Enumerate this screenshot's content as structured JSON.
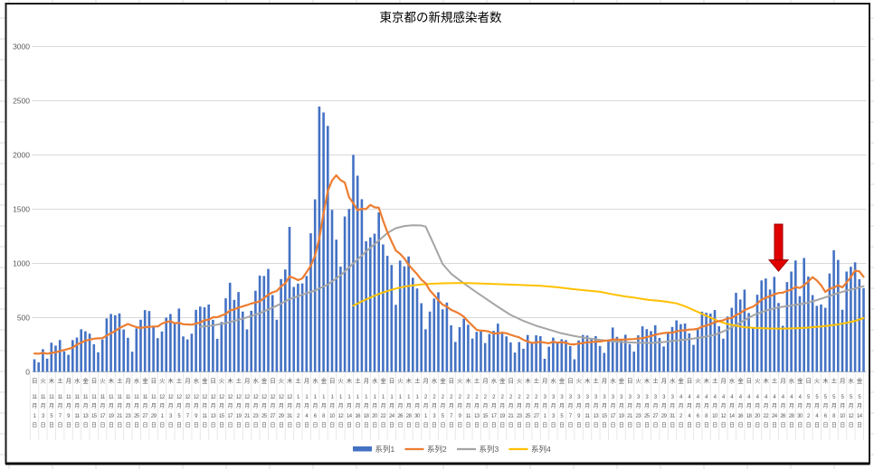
{
  "chart_data": {
    "type": "combo-bar-line",
    "title": "東京都の新規感染者数",
    "title_color": "#595959",
    "text_color": "#595959",
    "grid": true,
    "grid_color": "#D9D9D9",
    "axis_line_color": "#BFBFBF",
    "frame_border_color": "#1a1a1a",
    "legend_position": "bottom-center",
    "ylim": [
      0,
      3000
    ],
    "y_ticks": [
      0,
      500,
      1000,
      1500,
      2000,
      2500,
      3000
    ],
    "x_start_label": "11月1日",
    "x_end_label": "5月14日",
    "x_label_suffix_month": "月",
    "x_label_suffix_day": "日",
    "weekday_cycle": [
      "日",
      "火",
      "木",
      "土",
      "月",
      "水",
      "金"
    ],
    "x_labels": [
      "11/1",
      "11/3",
      "11/5",
      "11/7",
      "11/9",
      "11/11",
      "11/13",
      "11/15",
      "11/17",
      "11/19",
      "11/21",
      "11/23",
      "11/25",
      "11/27",
      "11/29",
      "12/1",
      "12/3",
      "12/5",
      "12/7",
      "12/9",
      "12/11",
      "12/13",
      "12/15",
      "12/17",
      "12/19",
      "12/21",
      "12/23",
      "12/25",
      "12/27",
      "12/29",
      "12/31",
      "1/2",
      "1/4",
      "1/6",
      "1/8",
      "1/10",
      "1/12",
      "1/14",
      "1/16",
      "1/18",
      "1/20",
      "1/22",
      "1/24",
      "1/26",
      "1/28",
      "1/30",
      "2/1",
      "2/3",
      "2/5",
      "2/7",
      "2/9",
      "2/11",
      "2/13",
      "2/15",
      "2/17",
      "2/19",
      "2/21",
      "2/23",
      "2/25",
      "2/27",
      "3/1",
      "3/3",
      "3/5",
      "3/7",
      "3/9",
      "3/11",
      "3/13",
      "3/15",
      "3/17",
      "3/19",
      "3/21",
      "3/23",
      "3/25",
      "3/27",
      "3/29",
      "3/31",
      "4/2",
      "4/4",
      "4/6",
      "4/8",
      "4/10",
      "4/12",
      "4/14",
      "4/16",
      "4/18",
      "4/20",
      "4/22",
      "4/24",
      "4/26",
      "4/28",
      "4/30",
      "5/2",
      "5/4",
      "5/6",
      "5/8",
      "5/10",
      "5/12",
      "5/14"
    ],
    "series": [
      {
        "name": "系列1",
        "type": "bar",
        "color": "#4472C4",
        "values": [
          116,
          87,
          209,
          122,
          269,
          242,
          294,
          189,
          157,
          293,
          317,
          393,
          374,
          352,
          255,
          180,
          298,
          493,
          534,
          522,
          539,
          391,
          314,
          186,
          401,
          481,
          570,
          561,
          418,
          311,
          372,
          500,
          533,
          449,
          584,
          327,
          299,
          352,
          572,
          602,
          595,
          621,
          480,
          305,
          460,
          678,
          822,
          664,
          736,
          556,
          392,
          563,
          748,
          888,
          884,
          949,
          708,
          481,
          856,
          944,
          1337,
          783,
          814,
          816,
          884,
          1278,
          1591,
          2447,
          2392,
          2268,
          1494,
          1219,
          970,
          1433,
          1502,
          2001,
          1809,
          1592,
          1204,
          1240,
          1274,
          1471,
          1175,
          1070,
          986,
          618,
          1026,
          973,
          1064,
          868,
          769,
          633,
          393,
          556,
          676,
          734,
          577,
          639,
          429,
          276,
          412,
          491,
          434,
          307,
          369,
          371,
          266,
          350,
          378,
          445,
          353,
          327,
          272,
          178,
          275,
          213,
          340,
          270,
          337,
          329,
          121,
          232,
          316,
          279,
          301,
          293,
          237,
          116,
          290,
          340,
          335,
          304,
          330,
          239,
          175,
          300,
          409,
          323,
          303,
          342,
          256,
          187,
          337,
          420,
          394,
          376,
          430,
          313,
          234,
          364,
          414,
          475,
          440,
          446,
          355,
          249,
          399,
          555,
          545,
          537,
          570,
          421,
          306,
          510,
          591,
          729,
          667,
          759,
          543,
          405,
          711,
          843,
          861,
          759,
          876,
          635,
          425,
          828,
          925,
          1027,
          698,
          1050,
          879,
          708,
          609,
          621,
          591,
          907,
          1121,
          1032,
          573,
          925,
          969,
          1010,
          854,
          772
        ]
      },
      {
        "name": "系列2",
        "type": "line",
        "color": "#ED7D31",
        "derivation": "7day-trailing-average-of-series1",
        "ma_seed_prev6": [
          102,
          158,
          171,
          221,
          204,
          215
        ]
      },
      {
        "name": "系列3",
        "type": "line",
        "color": "#A5A5A5",
        "points": [
          [
            40,
            415
          ],
          [
            43,
            428
          ],
          [
            46,
            450
          ],
          [
            50,
            490
          ],
          [
            54,
            540
          ],
          [
            58,
            610
          ],
          [
            61,
            670
          ],
          [
            64,
            712
          ],
          [
            67,
            750
          ],
          [
            70,
            805
          ],
          [
            73,
            890
          ],
          [
            76,
            1000
          ],
          [
            79,
            1110
          ],
          [
            82,
            1210
          ],
          [
            84,
            1280
          ],
          [
            86,
            1325
          ],
          [
            88,
            1345
          ],
          [
            90,
            1352
          ],
          [
            92,
            1350
          ],
          [
            93,
            1340
          ],
          [
            95,
            1170
          ],
          [
            97,
            995
          ],
          [
            99,
            905
          ],
          [
            101,
            845
          ],
          [
            104,
            760
          ],
          [
            107,
            680
          ],
          [
            110,
            600
          ],
          [
            113,
            525
          ],
          [
            116,
            470
          ],
          [
            119,
            425
          ],
          [
            122,
            390
          ],
          [
            125,
            355
          ],
          [
            128,
            330
          ],
          [
            131,
            310
          ],
          [
            134,
            295
          ],
          [
            137,
            282
          ],
          [
            140,
            273
          ],
          [
            143,
            268
          ],
          [
            146,
            267
          ],
          [
            149,
            275
          ],
          [
            152,
            288
          ],
          [
            155,
            302
          ],
          [
            158,
            318
          ],
          [
            161,
            340
          ],
          [
            164,
            390
          ],
          [
            167,
            455
          ],
          [
            170,
            520
          ],
          [
            173,
            565
          ],
          [
            176,
            595
          ],
          [
            179,
            612
          ],
          [
            182,
            630
          ],
          [
            185,
            662
          ],
          [
            188,
            700
          ],
          [
            191,
            738
          ],
          [
            194,
            768
          ],
          [
            196,
            790
          ]
        ]
      },
      {
        "name": "系列4",
        "type": "line",
        "color": "#FFC000",
        "points": [
          [
            76,
            610
          ],
          [
            78,
            650
          ],
          [
            80,
            685
          ],
          [
            82,
            718
          ],
          [
            84,
            745
          ],
          [
            86,
            768
          ],
          [
            88,
            785
          ],
          [
            90,
            797
          ],
          [
            92,
            806
          ],
          [
            94,
            812
          ],
          [
            97,
            817
          ],
          [
            100,
            819
          ],
          [
            103,
            818
          ],
          [
            106,
            815
          ],
          [
            109,
            810
          ],
          [
            112,
            806
          ],
          [
            116,
            800
          ],
          [
            120,
            794
          ],
          [
            124,
            780
          ],
          [
            128,
            762
          ],
          [
            131,
            750
          ],
          [
            134,
            738
          ],
          [
            137,
            715
          ],
          [
            140,
            695
          ],
          [
            142,
            685
          ],
          [
            144,
            672
          ],
          [
            146,
            662
          ],
          [
            148,
            655
          ],
          [
            150,
            645
          ],
          [
            152,
            632
          ],
          [
            154,
            605
          ],
          [
            156,
            570
          ],
          [
            158,
            535
          ],
          [
            160,
            500
          ],
          [
            162,
            465
          ],
          [
            164,
            442
          ],
          [
            166,
            425
          ],
          [
            168,
            412
          ],
          [
            171,
            404
          ],
          [
            174,
            400
          ],
          [
            177,
            399
          ],
          [
            180,
            402
          ],
          [
            183,
            408
          ],
          [
            186,
            418
          ],
          [
            189,
            432
          ],
          [
            192,
            452
          ],
          [
            194,
            470
          ],
          [
            196,
            496
          ]
        ]
      }
    ],
    "annotation": {
      "shape": "down-arrow",
      "fill": "#E00000",
      "outline": "#A00000",
      "at_day": 176,
      "top_value": 1362,
      "tip_value": 928
    }
  }
}
